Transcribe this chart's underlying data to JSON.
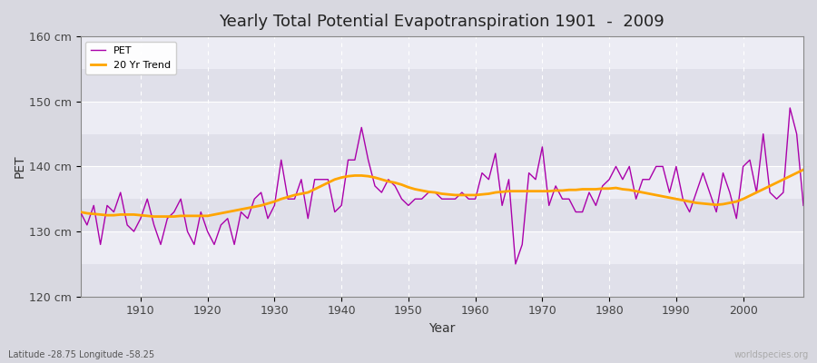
{
  "title": "Yearly Total Potential Evapotranspiration 1901  -  2009",
  "xlabel": "Year",
  "ylabel": "PET",
  "subtitle": "Latitude -28.75 Longitude -58.25",
  "watermark": "worldspecies.org",
  "pet_color": "#AA00AA",
  "trend_color": "#FFA500",
  "fig_bg_color": "#d8d8e0",
  "plot_bg_color": "#e8e8ee",
  "band_color1": "#e0e0ea",
  "band_color2": "#ececf4",
  "ylim": [
    120,
    160
  ],
  "xlim": [
    1901,
    2009
  ],
  "yticks": [
    120,
    130,
    140,
    150,
    160
  ],
  "ytick_labels": [
    "120 cm",
    "130 cm",
    "140 cm",
    "150 cm",
    "160 cm"
  ],
  "xticks": [
    1910,
    1920,
    1930,
    1940,
    1950,
    1960,
    1970,
    1980,
    1990,
    2000
  ],
  "years": [
    1901,
    1902,
    1903,
    1904,
    1905,
    1906,
    1907,
    1908,
    1909,
    1910,
    1911,
    1912,
    1913,
    1914,
    1915,
    1916,
    1917,
    1918,
    1919,
    1920,
    1921,
    1922,
    1923,
    1924,
    1925,
    1926,
    1927,
    1928,
    1929,
    1930,
    1931,
    1932,
    1933,
    1934,
    1935,
    1936,
    1937,
    1938,
    1939,
    1940,
    1941,
    1942,
    1943,
    1944,
    1945,
    1946,
    1947,
    1948,
    1949,
    1950,
    1951,
    1952,
    1953,
    1954,
    1955,
    1956,
    1957,
    1958,
    1959,
    1960,
    1961,
    1962,
    1963,
    1964,
    1965,
    1966,
    1967,
    1968,
    1969,
    1970,
    1971,
    1972,
    1973,
    1974,
    1975,
    1976,
    1977,
    1978,
    1979,
    1980,
    1981,
    1982,
    1983,
    1984,
    1985,
    1986,
    1987,
    1988,
    1989,
    1990,
    1991,
    1992,
    1993,
    1994,
    1995,
    1996,
    1997,
    1998,
    1999,
    2000,
    2001,
    2002,
    2003,
    2004,
    2005,
    2006,
    2007,
    2008,
    2009
  ],
  "pet": [
    133,
    131,
    134,
    128,
    134,
    133,
    136,
    131,
    130,
    132,
    135,
    131,
    128,
    132,
    133,
    135,
    130,
    128,
    133,
    130,
    128,
    131,
    132,
    128,
    133,
    132,
    135,
    136,
    132,
    134,
    141,
    135,
    135,
    138,
    132,
    138,
    138,
    138,
    133,
    134,
    141,
    141,
    146,
    141,
    137,
    136,
    138,
    137,
    135,
    134,
    135,
    135,
    136,
    136,
    135,
    135,
    135,
    136,
    135,
    135,
    139,
    138,
    142,
    134,
    138,
    125,
    128,
    139,
    138,
    143,
    134,
    137,
    135,
    135,
    133,
    133,
    136,
    134,
    137,
    138,
    140,
    138,
    140,
    135,
    138,
    138,
    140,
    140,
    136,
    140,
    135,
    133,
    136,
    139,
    136,
    133,
    139,
    136,
    132,
    140,
    141,
    136,
    145,
    136,
    135,
    136,
    149,
    145,
    134
  ],
  "trend": [
    133.0,
    132.8,
    132.7,
    132.6,
    132.5,
    132.5,
    132.6,
    132.6,
    132.6,
    132.5,
    132.4,
    132.3,
    132.3,
    132.3,
    132.3,
    132.4,
    132.4,
    132.4,
    132.4,
    132.4,
    132.6,
    132.8,
    133.0,
    133.2,
    133.4,
    133.6,
    133.8,
    134.0,
    134.3,
    134.6,
    135.0,
    135.3,
    135.6,
    135.8,
    136.0,
    136.5,
    137.0,
    137.5,
    138.0,
    138.3,
    138.5,
    138.6,
    138.6,
    138.5,
    138.3,
    138.0,
    137.7,
    137.5,
    137.2,
    136.8,
    136.5,
    136.3,
    136.1,
    136.0,
    135.8,
    135.7,
    135.6,
    135.6,
    135.6,
    135.6,
    135.7,
    135.8,
    136.0,
    136.1,
    136.2,
    136.2,
    136.2,
    136.2,
    136.2,
    136.2,
    136.2,
    136.3,
    136.3,
    136.4,
    136.4,
    136.5,
    136.5,
    136.5,
    136.6,
    136.6,
    136.7,
    136.5,
    136.4,
    136.2,
    136.0,
    135.8,
    135.6,
    135.4,
    135.2,
    135.0,
    134.8,
    134.6,
    134.4,
    134.3,
    134.2,
    134.1,
    134.2,
    134.4,
    134.6,
    135.0,
    135.5,
    136.0,
    136.5,
    137.0,
    137.5,
    138.0,
    138.5,
    139.0,
    139.5
  ]
}
